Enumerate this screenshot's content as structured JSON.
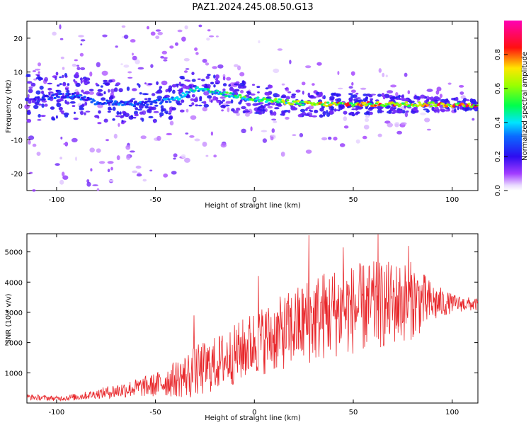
{
  "figure": {
    "title": "PAZ1.2024.245.08.50.G13"
  },
  "chart_data": [
    {
      "type": "heatmap",
      "title": "PAZ1.2024.245.08.50.G13",
      "xlabel": "Height of straight line (km)",
      "ylabel": "Frequency (Hz)",
      "xlim": [
        -115,
        113
      ],
      "ylim": [
        -25,
        25
      ],
      "xticks": [
        -100,
        -50,
        0,
        50,
        100
      ],
      "yticks": [
        -20,
        -10,
        0,
        10,
        20
      ],
      "colorbar": {
        "label": "Normalized spectral amplitude",
        "range": [
          0.0,
          1.0
        ],
        "ticks": [
          0.0,
          0.2,
          0.4,
          0.6,
          0.8
        ],
        "tick_labels": [
          "0.0",
          "0.2",
          "0.4",
          "0.6",
          "0.8"
        ],
        "colormap": "rainbow (violet-blue-cyan-green-yellow-red-magenta)"
      },
      "ridge": {
        "description": "main spectral peak frequency versus height",
        "x": [
          -110,
          -100,
          -90,
          -80,
          -70,
          -60,
          -50,
          -40,
          -30,
          -20,
          -10,
          0,
          10,
          20,
          30,
          40,
          50,
          60,
          70,
          80,
          90,
          100,
          110
        ],
        "y": [
          2,
          3,
          3,
          1,
          1,
          0.5,
          1,
          2,
          5,
          4,
          3,
          2,
          1.5,
          1,
          0.5,
          0.5,
          0.5,
          0.5,
          0.5,
          0.5,
          0.5,
          0.3,
          0.3
        ],
        "amplitude": [
          0.25,
          0.3,
          0.35,
          0.3,
          0.35,
          0.35,
          0.35,
          0.4,
          0.5,
          0.55,
          0.55,
          0.6,
          0.65,
          0.7,
          0.8,
          0.8,
          0.85,
          0.85,
          0.85,
          0.85,
          0.9,
          0.9,
          0.9
        ]
      },
      "grid": false
    },
    {
      "type": "line",
      "xlabel": "Height of straight line (km)",
      "ylabel": "SNR (10 * v/v)",
      "xlim": [
        -115,
        113
      ],
      "ylim": [
        0,
        5600
      ],
      "xticks": [
        -100,
        -50,
        0,
        50,
        100
      ],
      "yticks": [
        1000,
        2000,
        3000,
        4000,
        5000
      ],
      "color": "#e8262a",
      "envelope": {
        "x": [
          -115,
          -100,
          -90,
          -80,
          -70,
          -60,
          -50,
          -40,
          -30,
          -20,
          -10,
          0,
          10,
          20,
          30,
          40,
          50,
          60,
          70,
          80,
          90,
          100,
          113
        ],
        "mean": [
          200,
          150,
          200,
          300,
          400,
          500,
          600,
          800,
          1000,
          1300,
          1600,
          2000,
          2200,
          2500,
          2800,
          3000,
          3100,
          3200,
          3300,
          3400,
          3300,
          3300,
          3250
        ],
        "amp": [
          100,
          80,
          120,
          150,
          250,
          300,
          400,
          600,
          900,
          900,
          1000,
          1100,
          1200,
          1300,
          1500,
          1500,
          1500,
          1500,
          1400,
          1300,
          700,
          300,
          200
        ]
      },
      "peaks": [
        {
          "x": 27.5,
          "y": 5550
        },
        {
          "x": 62.5,
          "y": 5620
        },
        {
          "x": 78,
          "y": 5200
        },
        {
          "x": 45,
          "y": 5150
        },
        {
          "x": 2,
          "y": 4200
        },
        {
          "x": -30.5,
          "y": 2900
        }
      ],
      "grid": false
    }
  ]
}
